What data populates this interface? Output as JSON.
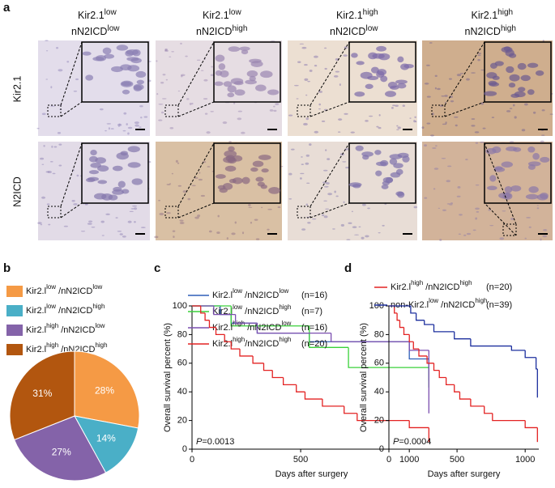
{
  "figure": {
    "panel_labels": [
      "a",
      "b",
      "c",
      "d"
    ],
    "columns": [
      {
        "l1": "Kir2.1",
        "s1": "low",
        "l2": "nN2ICD",
        "s2": "low"
      },
      {
        "l1": "Kir2.1",
        "s1": "low",
        "l2": "nN2ICD",
        "s2": "high"
      },
      {
        "l1": "Kir2.1",
        "s1": "high",
        "l2": "nN2ICD",
        "s2": "low"
      },
      {
        "l1": "Kir2.1",
        "s1": "high",
        "l2": "nN2ICD",
        "s2": "high"
      }
    ],
    "rows": [
      "Kir2.1",
      "N2ICD"
    ]
  },
  "chart_data": [
    {
      "type": "pie",
      "categories": [
        {
          "b1": "Kir2.l",
          "s1": "low",
          "b2": " /nN2ICD",
          "s2": "low"
        },
        {
          "b1": "Kir2.l",
          "s1": "low",
          "b2": " /nN2ICD",
          "s2": "high"
        },
        {
          "b1": "Kir2.l",
          "s1": "high",
          "b2": " /nN2ICD",
          "s2": "low"
        },
        {
          "b1": "Kir2.l",
          "s1": "high",
          "b2": " /nN2ICD",
          "s2": "high"
        }
      ],
      "values": [
        28,
        14,
        27,
        31
      ],
      "value_labels": [
        "28%",
        "14%",
        "27%",
        "31%"
      ],
      "colors": [
        "#f59a45",
        "#4aafc7",
        "#8463a9",
        "#b2560f"
      ]
    },
    {
      "type": "line",
      "step": true,
      "xlabel": "Days after surgery",
      "ylabel": "Overall survival percent (%)",
      "xlim": [
        0,
        1100
      ],
      "xticks": [
        0,
        500,
        1000
      ],
      "ylim": [
        0,
        100
      ],
      "yticks": [
        0,
        20,
        40,
        60,
        80,
        100
      ],
      "annotation": {
        "italic": "P",
        "text": "=0.0013"
      },
      "series": [
        {
          "name": {
            "b1": "Kir2.l",
            "s1": "low",
            "b2": " /nN2ICD",
            "s2": "low"
          },
          "n": "(n=16)",
          "color": "#2f5fb8",
          "x": [
            0,
            130,
            180,
            300,
            540,
            1000,
            1090
          ],
          "values": [
            100,
            94,
            88,
            81,
            75,
            63,
            48
          ]
        },
        {
          "name": {
            "b1": "Kir2.l",
            "s1": "low",
            "b2": " /nN2ICD",
            "s2": "high"
          },
          "n": "(n=7)",
          "color": "#3ad13a",
          "x": [
            0,
            180,
            540,
            720,
            1090
          ],
          "values": [
            100,
            86,
            71,
            57,
            43
          ]
        },
        {
          "name": {
            "b1": "Kir2.l",
            "s1": "high",
            "b2": " /nN2ICD",
            "s2": "low"
          },
          "n": "(n=16)",
          "color": "#7b4fb0",
          "x": [
            0,
            100,
            200,
            300,
            640,
            1000,
            1090
          ],
          "values": [
            100,
            94,
            88,
            81,
            75,
            69,
            25
          ]
        },
        {
          "name": {
            "b1": "Kir2.l",
            "s1": "high",
            "b2": "/nN2ICD",
            "s2": "high"
          },
          "n": "(n=20)",
          "color": "#e32222",
          "x": [
            0,
            40,
            60,
            80,
            110,
            150,
            180,
            220,
            280,
            330,
            370,
            420,
            480,
            520,
            600,
            700,
            760,
            1000,
            1090
          ],
          "values": [
            100,
            95,
            90,
            85,
            80,
            75,
            70,
            65,
            60,
            55,
            50,
            45,
            40,
            35,
            30,
            25,
            20,
            15,
            5
          ]
        }
      ]
    },
    {
      "type": "line",
      "step": true,
      "xlabel": "Days after surgery",
      "ylabel": "Overall survival percent (%)",
      "xlim": [
        0,
        1100
      ],
      "xticks": [
        0,
        500,
        1000
      ],
      "ylim": [
        0,
        100
      ],
      "yticks": [
        0,
        20,
        40,
        60,
        80,
        100
      ],
      "annotation": {
        "italic": "P",
        "text": "=0.0004"
      },
      "series": [
        {
          "name": {
            "b1": "Kir2.l",
            "s1": "high",
            "b2": " /nN2ICD",
            "s2": "high"
          },
          "n": "(n=20)",
          "color": "#e32222",
          "x": [
            0,
            40,
            60,
            80,
            110,
            150,
            180,
            220,
            280,
            330,
            370,
            420,
            480,
            520,
            600,
            700,
            760,
            1000,
            1090
          ],
          "values": [
            100,
            95,
            90,
            85,
            80,
            75,
            70,
            65,
            60,
            55,
            50,
            45,
            40,
            35,
            30,
            25,
            20,
            15,
            5
          ]
        },
        {
          "name": {
            "b1": "non-Kir2.l",
            "s1": "low",
            "b2": " /nN2ICD",
            "s2": "high"
          },
          "n": "(n=39)",
          "color": "#1c2f9e",
          "x": [
            0,
            160,
            200,
            260,
            330,
            480,
            600,
            900,
            1000,
            1080,
            1090
          ],
          "values": [
            100,
            95,
            90,
            87,
            82,
            77,
            72,
            69,
            64,
            56,
            36
          ]
        }
      ]
    }
  ]
}
